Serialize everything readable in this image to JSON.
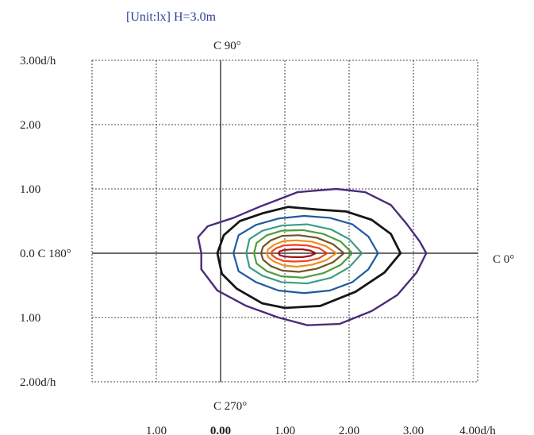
{
  "header": {
    "unit_label": "[Unit:lx]  H=3.0m"
  },
  "chart_data": {
    "type": "contour",
    "annotations": {
      "top": "C 90°",
      "bottom": "C 270°",
      "left": "0.0 C 180°",
      "right": "C 0°"
    },
    "y_ticks": [
      "3.00d/h",
      "2.00",
      "1.00",
      "0.0 C 180°",
      "1.00",
      "2.00d/h"
    ],
    "x_ticks": [
      "1.00",
      "0.00",
      "1.00",
      "2.00",
      "3.00",
      "4.00d/h"
    ],
    "x_range": [
      -2,
      4
    ],
    "y_range": [
      -2,
      3
    ],
    "series": [
      {
        "color": "#4b2c7a",
        "stroke_width": 2.4,
        "points": [
          [
            3.2,
            0
          ],
          [
            3.1,
            0.18
          ],
          [
            2.9,
            0.45
          ],
          [
            2.65,
            0.75
          ],
          [
            2.25,
            0.95
          ],
          [
            1.8,
            1.0
          ],
          [
            1.2,
            0.95
          ],
          [
            0.6,
            0.72
          ],
          [
            0.2,
            0.55
          ],
          [
            -0.2,
            0.42
          ],
          [
            -0.35,
            0.25
          ],
          [
            -0.3,
            0
          ],
          [
            -0.3,
            -0.25
          ],
          [
            -0.05,
            -0.58
          ],
          [
            0.4,
            -0.82
          ],
          [
            0.9,
            -1.0
          ],
          [
            1.35,
            -1.12
          ],
          [
            1.85,
            -1.1
          ],
          [
            2.35,
            -0.9
          ],
          [
            2.75,
            -0.65
          ],
          [
            3.05,
            -0.3
          ],
          [
            3.2,
            0
          ]
        ]
      },
      {
        "color": "#161616",
        "stroke_width": 2.8,
        "points": [
          [
            2.8,
            0
          ],
          [
            2.65,
            0.3
          ],
          [
            2.35,
            0.52
          ],
          [
            1.95,
            0.65
          ],
          [
            1.5,
            0.68
          ],
          [
            1.05,
            0.72
          ],
          [
            0.65,
            0.62
          ],
          [
            0.3,
            0.5
          ],
          [
            0.05,
            0.28
          ],
          [
            -0.05,
            0
          ],
          [
            0.02,
            -0.32
          ],
          [
            0.25,
            -0.55
          ],
          [
            0.65,
            -0.78
          ],
          [
            1.0,
            -0.85
          ],
          [
            1.55,
            -0.82
          ],
          [
            2.1,
            -0.6
          ],
          [
            2.55,
            -0.3
          ],
          [
            2.8,
            0
          ]
        ]
      },
      {
        "color": "#1f5aa0",
        "stroke_width": 2.2,
        "points": [
          [
            2.45,
            0
          ],
          [
            2.3,
            0.26
          ],
          [
            2.05,
            0.45
          ],
          [
            1.7,
            0.55
          ],
          [
            1.3,
            0.58
          ],
          [
            0.9,
            0.54
          ],
          [
            0.55,
            0.44
          ],
          [
            0.28,
            0.28
          ],
          [
            0.2,
            0
          ],
          [
            0.28,
            -0.28
          ],
          [
            0.55,
            -0.45
          ],
          [
            0.9,
            -0.58
          ],
          [
            1.3,
            -0.62
          ],
          [
            1.7,
            -0.58
          ],
          [
            2.05,
            -0.45
          ],
          [
            2.3,
            -0.25
          ],
          [
            2.45,
            0
          ]
        ]
      },
      {
        "color": "#3a9d84",
        "stroke_width": 2.2,
        "points": [
          [
            2.2,
            0
          ],
          [
            2.0,
            0.22
          ],
          [
            1.72,
            0.37
          ],
          [
            1.35,
            0.45
          ],
          [
            0.95,
            0.43
          ],
          [
            0.65,
            0.35
          ],
          [
            0.45,
            0.22
          ],
          [
            0.4,
            0
          ],
          [
            0.45,
            -0.22
          ],
          [
            0.65,
            -0.35
          ],
          [
            0.95,
            -0.45
          ],
          [
            1.35,
            -0.47
          ],
          [
            1.72,
            -0.38
          ],
          [
            2.0,
            -0.22
          ],
          [
            2.2,
            0
          ]
        ]
      },
      {
        "color": "#4f9d3b",
        "stroke_width": 2.2,
        "points": [
          [
            2.05,
            0
          ],
          [
            1.87,
            0.18
          ],
          [
            1.6,
            0.3
          ],
          [
            1.28,
            0.36
          ],
          [
            0.95,
            0.35
          ],
          [
            0.72,
            0.28
          ],
          [
            0.56,
            0.16
          ],
          [
            0.52,
            0
          ],
          [
            0.56,
            -0.16
          ],
          [
            0.72,
            -0.28
          ],
          [
            0.95,
            -0.36
          ],
          [
            1.28,
            -0.38
          ],
          [
            1.6,
            -0.31
          ],
          [
            1.87,
            -0.18
          ],
          [
            2.05,
            0
          ]
        ]
      },
      {
        "color": "#6e5526",
        "stroke_width": 2.2,
        "points": [
          [
            1.92,
            0
          ],
          [
            1.75,
            0.14
          ],
          [
            1.5,
            0.24
          ],
          [
            1.22,
            0.28
          ],
          [
            0.96,
            0.27
          ],
          [
            0.78,
            0.2
          ],
          [
            0.66,
            0.1
          ],
          [
            0.63,
            0
          ],
          [
            0.66,
            -0.1
          ],
          [
            0.78,
            -0.2
          ],
          [
            0.96,
            -0.27
          ],
          [
            1.22,
            -0.29
          ],
          [
            1.5,
            -0.24
          ],
          [
            1.75,
            -0.14
          ],
          [
            1.92,
            0
          ]
        ]
      },
      {
        "color": "#f08d1f",
        "stroke_width": 2.2,
        "points": [
          [
            1.8,
            0
          ],
          [
            1.64,
            0.11
          ],
          [
            1.42,
            0.18
          ],
          [
            1.18,
            0.2
          ],
          [
            0.98,
            0.19
          ],
          [
            0.83,
            0.13
          ],
          [
            0.74,
            0.06
          ],
          [
            0.72,
            0
          ],
          [
            0.74,
            -0.06
          ],
          [
            0.83,
            -0.13
          ],
          [
            0.98,
            -0.19
          ],
          [
            1.18,
            -0.21
          ],
          [
            1.42,
            -0.18
          ],
          [
            1.64,
            -0.11
          ],
          [
            1.8,
            0
          ]
        ]
      },
      {
        "color": "#f0441c",
        "stroke_width": 2.2,
        "points": [
          [
            1.66,
            0
          ],
          [
            1.53,
            0.08
          ],
          [
            1.35,
            0.12
          ],
          [
            1.15,
            0.13
          ],
          [
            0.98,
            0.12
          ],
          [
            0.87,
            0.08
          ],
          [
            0.8,
            0.03
          ],
          [
            0.79,
            0
          ],
          [
            0.8,
            -0.03
          ],
          [
            0.87,
            -0.08
          ],
          [
            0.98,
            -0.12
          ],
          [
            1.15,
            -0.13
          ],
          [
            1.35,
            -0.12
          ],
          [
            1.53,
            -0.08
          ],
          [
            1.66,
            0
          ]
        ]
      },
      {
        "color": "#a3121b",
        "stroke_width": 2.2,
        "points": [
          [
            1.48,
            0
          ],
          [
            1.4,
            0.04
          ],
          [
            1.28,
            0.06
          ],
          [
            1.12,
            0.06
          ],
          [
            0.99,
            0.05
          ],
          [
            0.92,
            0.03
          ],
          [
            0.9,
            0
          ],
          [
            0.92,
            -0.03
          ],
          [
            0.99,
            -0.05
          ],
          [
            1.12,
            -0.06
          ],
          [
            1.28,
            -0.06
          ],
          [
            1.4,
            -0.04
          ],
          [
            1.48,
            0
          ]
        ]
      }
    ]
  }
}
